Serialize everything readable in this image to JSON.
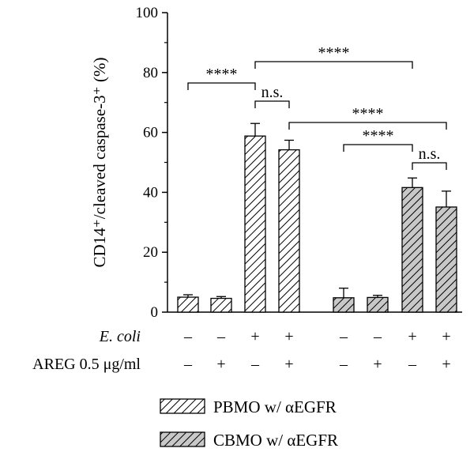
{
  "chart_data": {
    "type": "bar",
    "ylabel": "CD14⁺/cleaved caspase-3⁺ (%)",
    "ylim": [
      0,
      100
    ],
    "yticks": [
      "0",
      "20",
      "40",
      "60",
      "80",
      "100"
    ],
    "grid": false,
    "legend_position": "bottom",
    "series": [
      {
        "name": "PBMO w/ αEGFR",
        "fill": "#ffffff",
        "hatch": "diagonal",
        "values": [
          5.0,
          4.6,
          58.8,
          54.2
        ],
        "errors": [
          0.8,
          0.6,
          4.2,
          3.2
        ]
      },
      {
        "name": "CBMO w/ αEGFR",
        "fill": "#c8c8c8",
        "hatch": "diagonal",
        "values": [
          4.8,
          4.9,
          41.6,
          35.1
        ],
        "errors": [
          3.2,
          0.7,
          3.2,
          5.3
        ]
      }
    ],
    "conditions": {
      "row_labels": [
        "E. coli",
        "AREG 0.5 μg/ml"
      ],
      "ecoli": [
        "–",
        "–",
        "+",
        "+",
        "–",
        "–",
        "+",
        "+"
      ],
      "areg": [
        "–",
        "+",
        "–",
        "+",
        "–",
        "+",
        "–",
        "+"
      ]
    },
    "significance": [
      {
        "from": 0,
        "to": 2,
        "label": "****"
      },
      {
        "from": 2,
        "to": 3,
        "label": "n.s."
      },
      {
        "from": 2,
        "to": 6,
        "label": "****"
      },
      {
        "from": 3,
        "to": 7,
        "label": "****"
      },
      {
        "from": 4,
        "to": 6,
        "label": "****"
      },
      {
        "from": 6,
        "to": 7,
        "label": "n.s."
      }
    ]
  }
}
